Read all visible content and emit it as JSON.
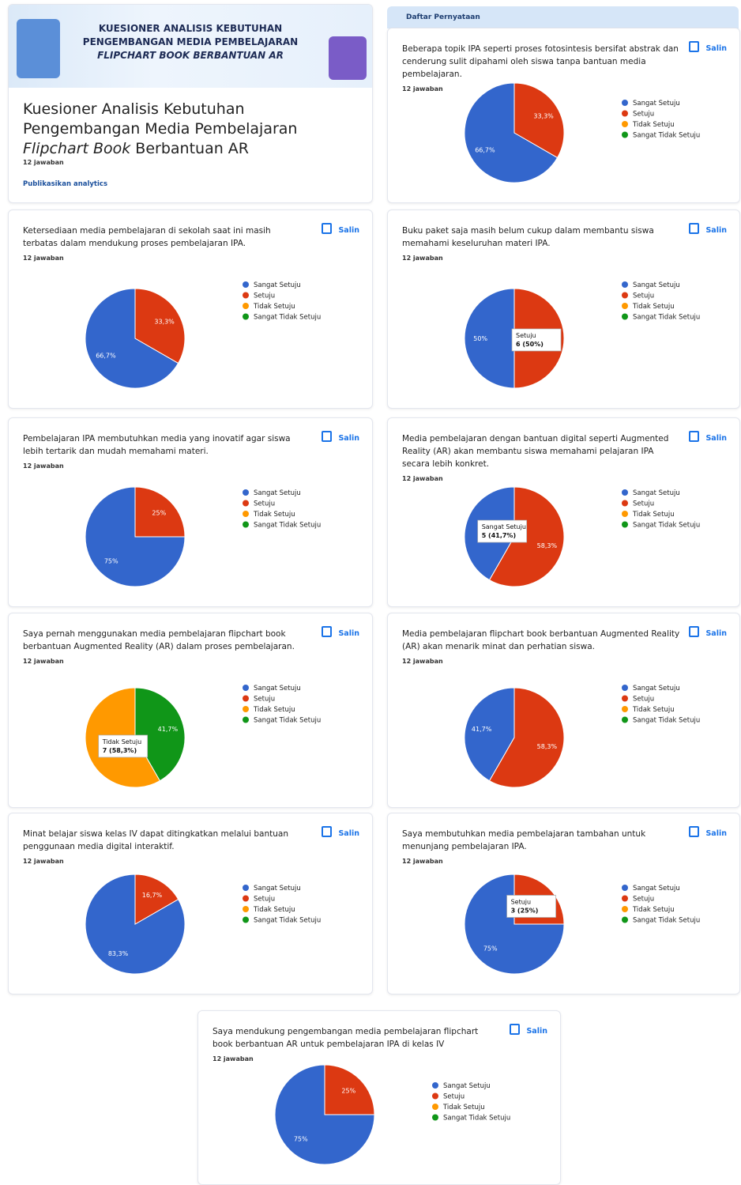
{
  "header": {
    "banner": [
      "KUESIONER ANALISIS KEBUTUHAN",
      "PENGEMBANGAN MEDIA PEMBELAJARAN",
      "FLIPCHART BOOK BERBANTUAN AR"
    ],
    "title": [
      "Kuesioner Analisis Kebutuhan",
      "Pengembangan Media Pembelajaran",
      "Flipchart Book",
      " Berbantuan AR"
    ],
    "responses": "12 jawaban",
    "link": "Publikasikan analytics",
    "section": "Daftar Pernyataan"
  },
  "chart_data": [
    {
      "type": "pie",
      "title": "Beberapa topik IPA seperti proses fotosintesis bersifat abstrak dan cenderung sulit dipahami oleh siswa tanpa bantuan media pembelajaran.",
      "subtitle": "12 jawaban",
      "action": "Salin",
      "categories": [
        "Sangat Setuju",
        "Setuju",
        "Tidak Setuju",
        "Sangat Tidak Setuju"
      ],
      "colors": [
        "#3366cc",
        "#dc3912",
        "#ff9900",
        "#109618"
      ],
      "values": [
        66.7,
        33.3,
        0,
        0
      ],
      "value_labels": [
        "66,7%",
        "33,3%",
        null,
        null
      ]
    },
    {
      "type": "pie",
      "title": "Ketersediaan media pembelajaran di sekolah saat ini masih terbatas dalam mendukung proses pembelajaran IPA.",
      "subtitle": "12 jawaban",
      "action": "Salin",
      "categories": [
        "Sangat Setuju",
        "Setuju",
        "Tidak Setuju",
        "Sangat Tidak Setuju"
      ],
      "colors": [
        "#3366cc",
        "#dc3912",
        "#ff9900",
        "#109618"
      ],
      "values": [
        66.7,
        33.3,
        0,
        0
      ],
      "value_labels": [
        "66,7%",
        "33,3%",
        null,
        null
      ]
    },
    {
      "type": "pie",
      "title": "Buku paket saja masih belum cukup dalam membantu siswa memahami keseluruhan materi IPA.",
      "subtitle": "12 jawaban",
      "action": "Salin",
      "categories": [
        "Sangat Setuju",
        "Setuju",
        "Tidak Setuju",
        "Sangat Tidak Setuju"
      ],
      "colors": [
        "#3366cc",
        "#dc3912",
        "#ff9900",
        "#109618"
      ],
      "values": [
        50,
        50,
        0,
        0
      ],
      "value_labels": [
        "50%",
        null,
        null,
        null
      ],
      "annotation": [
        "Setuju",
        "6 (50%)"
      ]
    },
    {
      "type": "pie",
      "title": "Pembelajaran IPA membutuhkan media yang inovatif agar siswa lebih tertarik dan mudah memahami materi.",
      "subtitle": "12 jawaban",
      "action": "Salin",
      "categories": [
        "Sangat Setuju",
        "Setuju",
        "Tidak Setuju",
        "Sangat Tidak Setuju"
      ],
      "colors": [
        "#3366cc",
        "#dc3912",
        "#ff9900",
        "#109618"
      ],
      "values": [
        75,
        25,
        0,
        0
      ],
      "value_labels": [
        "75%",
        "25%",
        null,
        null
      ]
    },
    {
      "type": "pie",
      "title": "Media pembelajaran dengan bantuan digital seperti Augmented Reality (AR) akan membantu siswa memahami pelajaran IPA secara lebih konkret.",
      "subtitle": "12 jawaban",
      "action": "Salin",
      "categories": [
        "Sangat Setuju",
        "Setuju",
        "Tidak Setuju",
        "Sangat Tidak Setuju"
      ],
      "colors": [
        "#3366cc",
        "#dc3912",
        "#ff9900",
        "#109618"
      ],
      "values": [
        41.7,
        58.3,
        0,
        0
      ],
      "value_labels": [
        null,
        "58,3%",
        null,
        null
      ],
      "annotation": [
        "Sangat Setuju",
        "5 (41,7%)"
      ]
    },
    {
      "type": "pie",
      "title": "Saya pernah menggunakan media pembelajaran flipchart book berbantuan Augmented Reality (AR) dalam proses pembelajaran.",
      "subtitle": "12 jawaban",
      "action": "Salin",
      "categories": [
        "Sangat Setuju",
        "Setuju",
        "Tidak Setuju",
        "Sangat Tidak Setuju"
      ],
      "colors": [
        "#3366cc",
        "#dc3912",
        "#ff9900",
        "#109618"
      ],
      "values": [
        0,
        0,
        58.3,
        41.7
      ],
      "value_labels": [
        null,
        null,
        null,
        "41,7%"
      ],
      "annotation": [
        "Tidak Setuju",
        "7 (58,3%)"
      ]
    },
    {
      "type": "pie",
      "title": "Media pembelajaran flipchart book berbantuan Augmented Reality (AR) akan menarik minat dan perhatian siswa.",
      "subtitle": "12 jawaban",
      "action": "Salin",
      "categories": [
        "Sangat Setuju",
        "Setuju",
        "Tidak Setuju",
        "Sangat Tidak Setuju"
      ],
      "colors": [
        "#3366cc",
        "#dc3912",
        "#ff9900",
        "#109618"
      ],
      "values": [
        41.7,
        58.3,
        0,
        0
      ],
      "value_labels": [
        "41,7%",
        "58,3%",
        null,
        null
      ]
    },
    {
      "type": "pie",
      "title": "Minat belajar siswa kelas IV dapat ditingkatkan melalui bantuan penggunaan media digital interaktif.",
      "subtitle": "12 jawaban",
      "action": "Salin",
      "categories": [
        "Sangat Setuju",
        "Setuju",
        "Tidak Setuju",
        "Sangat Tidak Setuju"
      ],
      "colors": [
        "#3366cc",
        "#dc3912",
        "#ff9900",
        "#109618"
      ],
      "values": [
        83.3,
        16.7,
        0,
        0
      ],
      "value_labels": [
        "83,3%",
        "16,7%",
        null,
        null
      ]
    },
    {
      "type": "pie",
      "title": "Saya membutuhkan media pembelajaran tambahan untuk menunjang pembelajaran IPA.",
      "subtitle": "12 jawaban",
      "action": "Salin",
      "categories": [
        "Sangat Setuju",
        "Setuju",
        "Tidak Setuju",
        "Sangat Tidak Setuju"
      ],
      "colors": [
        "#3366cc",
        "#dc3912",
        "#ff9900",
        "#109618"
      ],
      "values": [
        75,
        25,
        0,
        0
      ],
      "value_labels": [
        "75%",
        null,
        null,
        null
      ],
      "annotation": [
        "Setuju",
        "3 (25%)"
      ]
    },
    {
      "type": "pie",
      "title": "Saya mendukung pengembangan media pembelajaran flipchart book berbantuan AR untuk pembelajaran IPA di kelas IV",
      "subtitle": "12 jawaban",
      "action": "Salin",
      "categories": [
        "Sangat Setuju",
        "Setuju",
        "Tidak Setuju",
        "Sangat Tidak Setuju"
      ],
      "colors": [
        "#3366cc",
        "#dc3912",
        "#ff9900",
        "#109618"
      ],
      "values": [
        75,
        25,
        0,
        0
      ],
      "value_labels": [
        "75%",
        "25%",
        null,
        null
      ]
    }
  ]
}
